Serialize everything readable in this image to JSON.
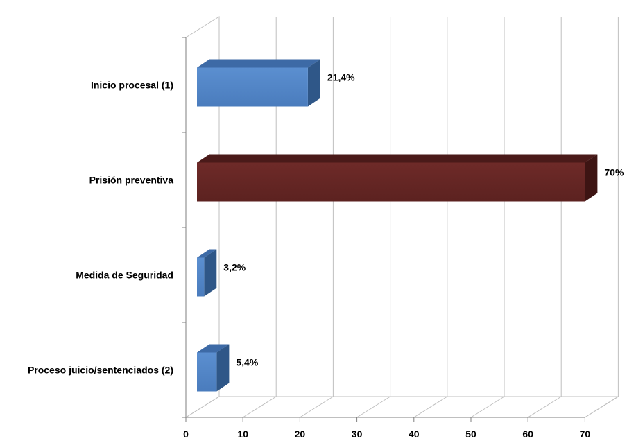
{
  "chart_data": {
    "type": "bar",
    "orientation": "horizontal",
    "three_d": true,
    "categories": [
      "Inicio procesal (1)",
      "Prisión preventiva",
      "Medida de Seguridad",
      "Proceso juicio/sentenciados (2)"
    ],
    "values": [
      21.4,
      70,
      3.2,
      5.4
    ],
    "value_labels": [
      "21,4%",
      "70%",
      "3,2%",
      "5,4%"
    ],
    "bar_colors": [
      "#4f81bd",
      "#632523",
      "#4f81bd",
      "#4f81bd"
    ],
    "xlim": [
      0,
      70
    ],
    "xticks": [
      0,
      10,
      20,
      30,
      40,
      50,
      60,
      70
    ],
    "grid": true,
    "legend": "none",
    "title": "",
    "xlabel": "",
    "ylabel": ""
  }
}
